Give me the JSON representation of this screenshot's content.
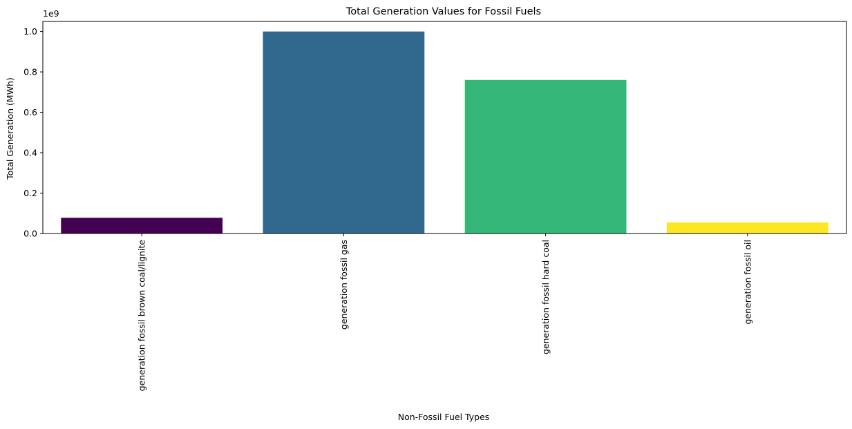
{
  "chart_data": {
    "type": "bar",
    "title": "Total Generation Values for Fossil Fuels",
    "xlabel": "Non-Fossil Fuel Types",
    "ylabel": "Total Generation (MWh)",
    "y_offset_label": "1e9",
    "categories": [
      "generation fossil brown coal/lignite",
      "generation fossil gas",
      "generation fossil hard coal",
      "generation fossil oil"
    ],
    "values": [
      78000000,
      1000000000,
      760000000,
      55000000
    ],
    "colors": [
      "#440154",
      "#31688e",
      "#35b779",
      "#fde725"
    ],
    "ylim": [
      0,
      1050000000
    ],
    "yticks": [
      0,
      200000000,
      400000000,
      600000000,
      800000000,
      1000000000
    ],
    "ytick_labels": [
      "0.0",
      "0.2",
      "0.4",
      "0.6",
      "0.8",
      "1.0"
    ],
    "grid": false,
    "legend": "none"
  }
}
